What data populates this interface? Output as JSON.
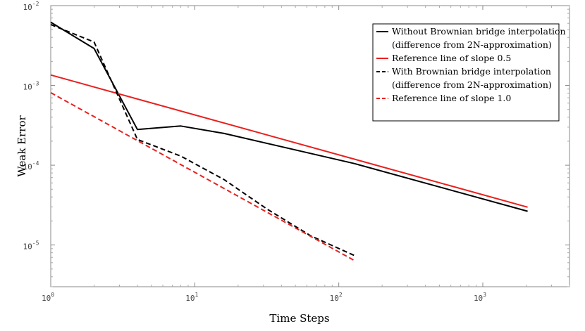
{
  "chart_data": {
    "type": "line",
    "title": "",
    "xlabel": "Time Steps",
    "ylabel": "Weak Error",
    "xscale": "log",
    "yscale": "log",
    "xlim": [
      1,
      4000
    ],
    "ylim": [
      3e-06,
      0.01
    ],
    "x_ticks": [
      {
        "base": "10",
        "exp": "0"
      },
      {
        "base": "10",
        "exp": "1"
      },
      {
        "base": "10",
        "exp": "2"
      },
      {
        "base": "10",
        "exp": "3"
      }
    ],
    "y_ticks": [
      {
        "base": "10",
        "exp": "-5"
      },
      {
        "base": "10",
        "exp": "-4"
      },
      {
        "base": "10",
        "exp": "-3"
      },
      {
        "base": "10",
        "exp": "-2"
      }
    ],
    "grid": false,
    "legend_position": "top-right",
    "series": [
      {
        "name": "Without Brownian bridge interpolation",
        "name_line2": "(difference from 2N-approximation)",
        "color": "#000000",
        "dash": "solid",
        "x": [
          1,
          2,
          4,
          8,
          16,
          128,
          2048
        ],
        "y": [
          0.0062,
          0.0029,
          0.00028,
          0.00031,
          0.00025,
          0.000105,
          2.65e-05
        ]
      },
      {
        "name": "Reference line of slope 0.5",
        "name_line2": "",
        "color": "#e8201e",
        "dash": "solid",
        "x": [
          1,
          2048
        ],
        "y": [
          0.00135,
          2.98e-05
        ]
      },
      {
        "name": "With Brownian bridge interpolation",
        "name_line2": "(difference from 2N-approximation)",
        "color": "#000000",
        "dash": "dashed",
        "x": [
          1,
          2,
          4,
          8,
          16,
          32,
          64,
          128
        ],
        "y": [
          0.0058,
          0.0035,
          0.00021,
          0.00013,
          6.6e-05,
          2.8e-05,
          1.3e-05,
          7.4e-06
        ]
      },
      {
        "name": "Reference line of slope 1.0",
        "name_line2": "",
        "color": "#e8201e",
        "dash": "dashed",
        "x": [
          1,
          128
        ],
        "y": [
          0.00081,
          6.4e-06
        ]
      }
    ]
  }
}
